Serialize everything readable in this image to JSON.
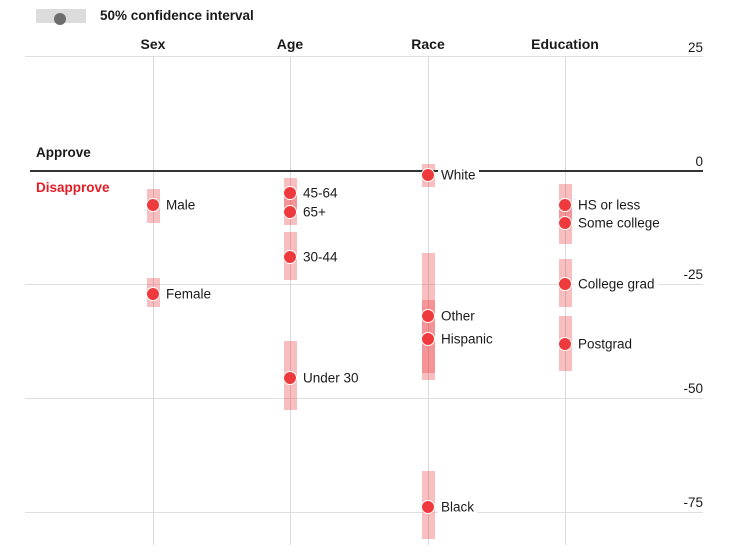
{
  "legend": {
    "label": "50% confidence interval"
  },
  "colors": {
    "dot_red": "#ee3a3d",
    "ci_band_pink": "rgba(238,60,63,0.33)",
    "legend_dot_gray": "#6e6e6e",
    "legend_band_gray": "#dcdcdc",
    "disapprove_red": "#e21d25",
    "zero_line": "#333333"
  },
  "chart_data": {
    "type": "scatter",
    "subtype": "dot-estimates-with-50pct-confidence-bands",
    "legend": "50% confidence interval",
    "grid": true,
    "ylim": [
      -85,
      25
    ],
    "yticks": [
      25,
      0,
      -25,
      -50,
      -75
    ],
    "zero_labels": {
      "positive": "Approve",
      "negative": "Disapprove"
    },
    "groups": [
      {
        "name": "Sex",
        "items": [
          {
            "label": "Male",
            "value": -7.5,
            "ci": [
              -4,
              -11.5
            ]
          },
          {
            "label": "Female",
            "value": -27,
            "ci": [
              -23.5,
              -30
            ]
          }
        ]
      },
      {
        "name": "Age",
        "items": [
          {
            "label": "45-64",
            "value": -5,
            "ci": [
              -1.5,
              -9
            ]
          },
          {
            "label": "65+",
            "value": -9,
            "ci": [
              -5.5,
              -12
            ]
          },
          {
            "label": "30-44",
            "value": -19,
            "ci": [
              -13.5,
              -24
            ]
          },
          {
            "label": "Under 30",
            "value": -45.5,
            "ci": [
              -37.5,
              -52.5
            ]
          }
        ]
      },
      {
        "name": "Race",
        "items": [
          {
            "label": "White",
            "value": -1,
            "ci": [
              1.5,
              -3.5
            ]
          },
          {
            "label": "Other",
            "value": -32,
            "ci": [
              -18,
              -46
            ]
          },
          {
            "label": "Hispanic",
            "value": -37,
            "ci": [
              -28.5,
              -44.5
            ]
          },
          {
            "label": "Black",
            "value": -74,
            "ci": [
              -66,
              -81
            ]
          }
        ]
      },
      {
        "name": "Education",
        "items": [
          {
            "label": "HS or less",
            "value": -7.5,
            "ci": [
              -3,
              -12
            ]
          },
          {
            "label": "Some college",
            "value": -11.5,
            "ci": [
              -7,
              -16
            ]
          },
          {
            "label": "College grad",
            "value": -25,
            "ci": [
              -19.5,
              -30
            ]
          },
          {
            "label": "Postgrad",
            "value": -38,
            "ci": [
              -32,
              -44
            ]
          }
        ]
      }
    ]
  }
}
